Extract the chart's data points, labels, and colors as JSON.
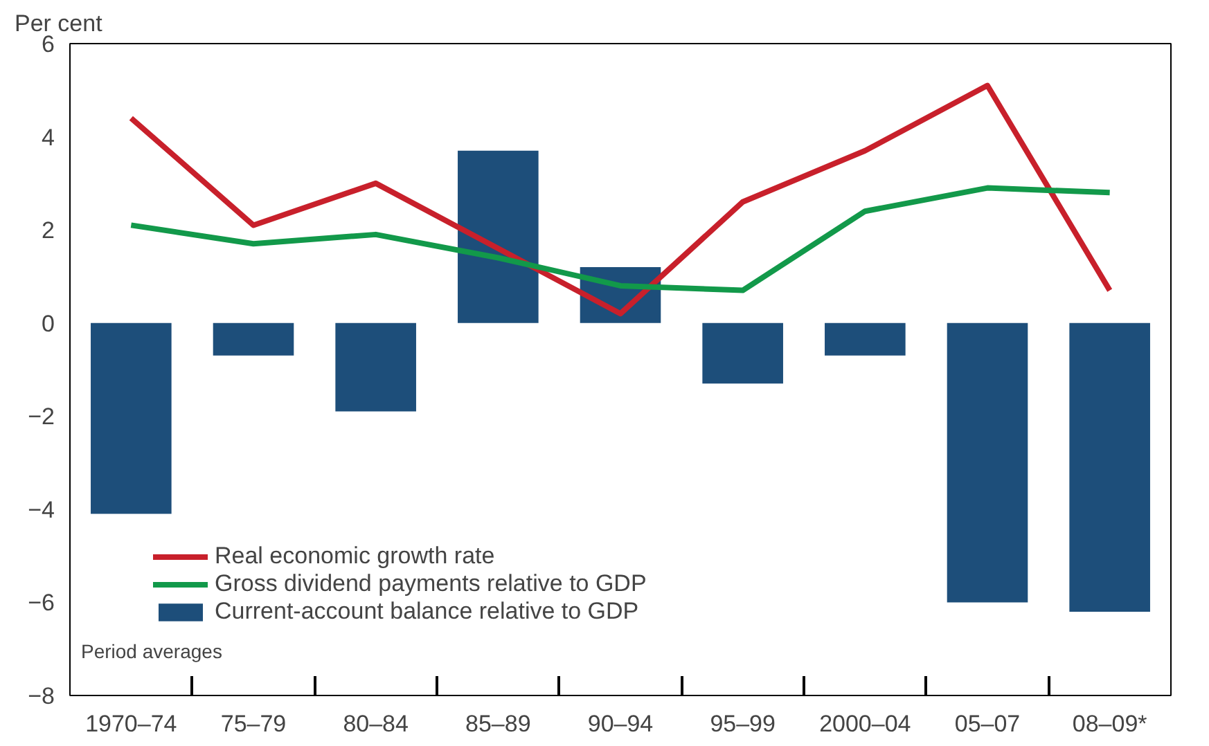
{
  "chart_data": {
    "type": "bar",
    "ylabel": "Per cent",
    "categories": [
      "1970–74",
      "75–79",
      "80–84",
      "85–89",
      "90–94",
      "95–99",
      "2000–04",
      "05–07",
      "08–09*"
    ],
    "series": [
      {
        "name": "Real economic growth rate",
        "type": "line",
        "color": "#c8202b",
        "values": [
          4.4,
          2.1,
          3.0,
          1.6,
          0.2,
          2.6,
          3.7,
          5.1,
          0.7
        ]
      },
      {
        "name": "Gross dividend payments relative to GDP",
        "type": "line",
        "color": "#12994a",
        "values": [
          2.1,
          1.7,
          1.9,
          1.4,
          0.8,
          0.7,
          2.4,
          2.9,
          2.8
        ]
      },
      {
        "name": "Current-account balance relative to GDP",
        "color": "#1d4e7a",
        "values": [
          -4.1,
          -0.7,
          -1.9,
          3.7,
          1.2,
          -1.3,
          -0.7,
          -6.0,
          -6.2
        ]
      }
    ],
    "ylim": [
      -8,
      6
    ],
    "yticks": [
      -8,
      -6,
      -4,
      -2,
      0,
      2,
      4,
      6
    ],
    "annotations": [
      "Period averages"
    ],
    "legend": "bottom left",
    "grid": false
  }
}
